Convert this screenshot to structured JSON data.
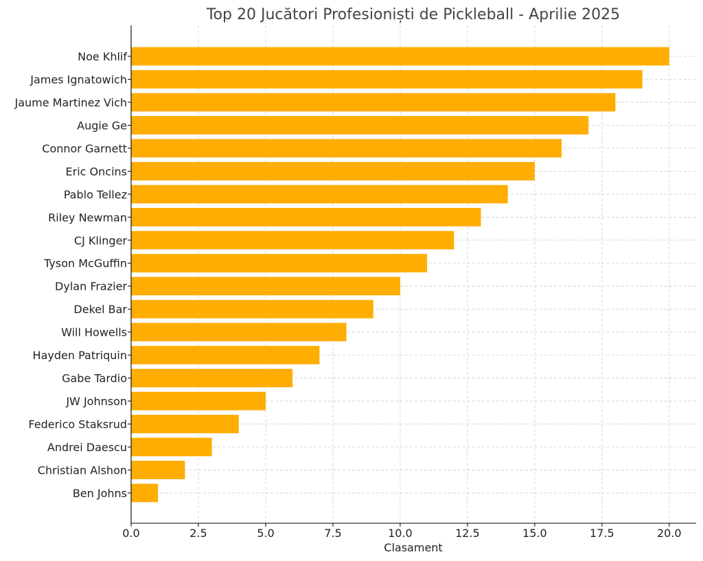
{
  "chart_data": {
    "type": "bar",
    "orientation": "horizontal",
    "title": "Top 20 Jucători Profesioniști de Pickleball - Aprilie 2025",
    "xlabel": "Clasament",
    "ylabel": "",
    "xlim": [
      0,
      21
    ],
    "xticks": [
      "0.0",
      "2.5",
      "5.0",
      "7.5",
      "10.0",
      "12.5",
      "15.0",
      "17.5",
      "20.0"
    ],
    "grid": true,
    "bar_color": "#FFAD00",
    "categories": [
      "Noe Khlif",
      "James Ignatowich",
      "Jaume Martinez Vich",
      "Augie Ge",
      "Connor Garnett",
      "Eric Oncins",
      "Pablo Tellez",
      "Riley Newman",
      "CJ Klinger",
      "Tyson McGuffin",
      "Dylan Frazier",
      "Dekel Bar",
      "Will Howells",
      "Hayden Patriquin",
      "Gabe Tardio",
      "JW Johnson",
      "Federico Staksrud",
      "Andrei Daescu",
      "Christian Alshon",
      "Ben Johns"
    ],
    "values": [
      20,
      19,
      18,
      17,
      16,
      15,
      14,
      13,
      12,
      11,
      10,
      9,
      8,
      7,
      6,
      5,
      4,
      3,
      2,
      1
    ]
  }
}
